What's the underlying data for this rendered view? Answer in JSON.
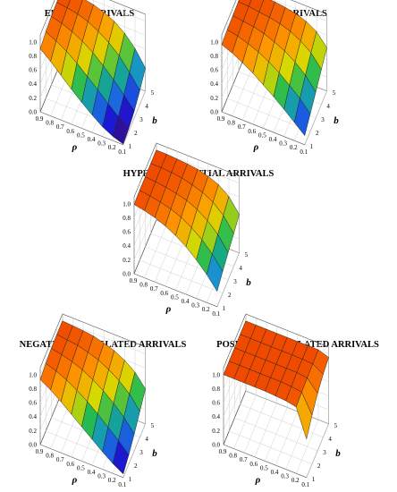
{
  "colors": {
    "scale": [
      "#3b0a78",
      "#1a1ad8",
      "#1a8ce0",
      "#12b85a",
      "#d8d800",
      "#ff9a00",
      "#f04a00"
    ]
  },
  "chart_data": [
    {
      "type": "surface",
      "title": "ERLANG ARRIVALS",
      "xlabel": "ρ",
      "ylabel": "b",
      "zlim": [
        0,
        1.1
      ],
      "rho_ticks": [
        "0.9",
        "0.8",
        "0.7",
        "0.6",
        "0.5",
        "0.4",
        "0.3",
        "0.2",
        "0.1"
      ],
      "b_ticks": [
        "1",
        "2",
        "3",
        "4",
        "5"
      ],
      "z_ticks": [
        "0.0",
        "0.2",
        "0.4",
        "0.6",
        "0.8",
        "1.0"
      ],
      "rho": [
        0.9,
        0.8,
        0.7,
        0.6,
        0.5,
        0.4,
        0.3,
        0.2,
        0.1
      ],
      "b": [
        1,
        2,
        3,
        4,
        5
      ],
      "z": [
        [
          0.9,
          0.95,
          0.98,
          0.99,
          1.0
        ],
        [
          0.78,
          0.88,
          0.94,
          0.97,
          0.99
        ],
        [
          0.64,
          0.79,
          0.88,
          0.94,
          0.97
        ],
        [
          0.5,
          0.68,
          0.8,
          0.89,
          0.94
        ],
        [
          0.37,
          0.55,
          0.7,
          0.81,
          0.89
        ],
        [
          0.25,
          0.42,
          0.57,
          0.71,
          0.82
        ],
        [
          0.14,
          0.28,
          0.43,
          0.58,
          0.71
        ],
        [
          0.06,
          0.15,
          0.27,
          0.4,
          0.55
        ],
        [
          0.01,
          0.04,
          0.1,
          0.2,
          0.33
        ]
      ]
    },
    {
      "type": "surface",
      "title": "POISSON ARRIVALS",
      "xlabel": "ρ",
      "ylabel": "b",
      "zlim": [
        0,
        1.1
      ],
      "rho_ticks": [
        "0.9",
        "0.8",
        "0.7",
        "0.6",
        "0.5",
        "0.4",
        "0.3",
        "0.2",
        "0.1"
      ],
      "b_ticks": [
        "1",
        "2",
        "3",
        "4",
        "5"
      ],
      "z_ticks": [
        "0.0",
        "0.2",
        "0.4",
        "0.6",
        "0.8",
        "1.0"
      ],
      "rho": [
        0.9,
        0.8,
        0.7,
        0.6,
        0.5,
        0.4,
        0.3,
        0.2,
        0.1
      ],
      "b": [
        1,
        2,
        3,
        4,
        5
      ],
      "z": [
        [
          0.96,
          0.98,
          0.99,
          1.0,
          1.0
        ],
        [
          0.9,
          0.95,
          0.97,
          0.99,
          1.0
        ],
        [
          0.82,
          0.9,
          0.95,
          0.97,
          0.99
        ],
        [
          0.73,
          0.84,
          0.91,
          0.95,
          0.98
        ],
        [
          0.62,
          0.76,
          0.85,
          0.92,
          0.96
        ],
        [
          0.51,
          0.66,
          0.78,
          0.87,
          0.93
        ],
        [
          0.39,
          0.54,
          0.68,
          0.79,
          0.88
        ],
        [
          0.26,
          0.41,
          0.55,
          0.68,
          0.79
        ],
        [
          0.13,
          0.25,
          0.37,
          0.5,
          0.62
        ]
      ]
    },
    {
      "type": "surface",
      "title": "HYPEREXPONENTIAL ARRIVALS",
      "xlabel": "ρ",
      "ylabel": "b",
      "zlim": [
        0,
        1.1
      ],
      "rho_ticks": [
        "0.9",
        "0.8",
        "0.7",
        "0.6",
        "0.5",
        "0.4",
        "0.3",
        "0.2",
        "0.1"
      ],
      "b_ticks": [
        "1",
        "2",
        "3",
        "4",
        "5"
      ],
      "z_ticks": [
        "0.0",
        "0.2",
        "0.4",
        "0.6",
        "0.8",
        "1.0"
      ],
      "rho": [
        0.9,
        0.8,
        0.7,
        0.6,
        0.5,
        0.4,
        0.3,
        0.2,
        0.1
      ],
      "b": [
        1,
        2,
        3,
        4,
        5
      ],
      "z": [
        [
          0.99,
          1.0,
          1.0,
          1.0,
          1.0
        ],
        [
          0.96,
          0.98,
          0.99,
          1.0,
          1.0
        ],
        [
          0.92,
          0.95,
          0.97,
          0.99,
          0.99
        ],
        [
          0.86,
          0.91,
          0.94,
          0.97,
          0.98
        ],
        [
          0.78,
          0.85,
          0.9,
          0.93,
          0.96
        ],
        [
          0.68,
          0.76,
          0.83,
          0.88,
          0.92
        ],
        [
          0.55,
          0.65,
          0.73,
          0.8,
          0.86
        ],
        [
          0.4,
          0.5,
          0.59,
          0.67,
          0.75
        ],
        [
          0.22,
          0.31,
          0.39,
          0.47,
          0.55
        ]
      ]
    },
    {
      "type": "surface",
      "title": "NEGATIVE CORRELATED ARRIVALS",
      "xlabel": "ρ",
      "ylabel": "b",
      "zlim": [
        0,
        1.1
      ],
      "rho_ticks": [
        "0.9",
        "0.8",
        "0.7",
        "0.6",
        "0.5",
        "0.4",
        "0.3",
        "0.2",
        "0.1"
      ],
      "b_ticks": [
        "1",
        "2",
        "3",
        "4",
        "5"
      ],
      "z_ticks": [
        "0.0",
        "0.2",
        "0.4",
        "0.6",
        "0.8",
        "1.0"
      ],
      "rho": [
        0.9,
        0.8,
        0.7,
        0.6,
        0.5,
        0.4,
        0.3,
        0.2,
        0.1
      ],
      "b": [
        1,
        2,
        3,
        4,
        5
      ],
      "z": [
        [
          0.93,
          0.97,
          0.99,
          1.0,
          1.0
        ],
        [
          0.84,
          0.92,
          0.96,
          0.98,
          0.99
        ],
        [
          0.73,
          0.85,
          0.92,
          0.96,
          0.98
        ],
        [
          0.61,
          0.76,
          0.86,
          0.92,
          0.96
        ],
        [
          0.49,
          0.66,
          0.78,
          0.87,
          0.92
        ],
        [
          0.37,
          0.54,
          0.68,
          0.79,
          0.87
        ],
        [
          0.25,
          0.41,
          0.56,
          0.69,
          0.79
        ],
        [
          0.14,
          0.28,
          0.42,
          0.56,
          0.68
        ],
        [
          0.05,
          0.13,
          0.24,
          0.37,
          0.5
        ]
      ]
    },
    {
      "type": "surface",
      "title": "POSITIVE CORRELATED ARRIVALS",
      "xlabel": "ρ",
      "ylabel": "b",
      "zlim": [
        0,
        1.1
      ],
      "rho_ticks": [
        "0.9",
        "0.8",
        "0.7",
        "0.6",
        "0.5",
        "0.4",
        "0.3",
        "0.2",
        "0.1"
      ],
      "b_ticks": [
        "1",
        "2",
        "3",
        "4",
        "5"
      ],
      "z_ticks": [
        "0.0",
        "0.2",
        "0.4",
        "0.6",
        "0.8",
        "1.0"
      ],
      "rho": [
        0.9,
        0.8,
        0.7,
        0.6,
        0.5,
        0.4,
        0.3,
        0.2,
        0.1
      ],
      "b": [
        1,
        2,
        3,
        4,
        5
      ],
      "z": [
        [
          1.0,
          1.0,
          1.0,
          1.0,
          1.0
        ],
        [
          1.0,
          1.0,
          1.0,
          1.0,
          1.0
        ],
        [
          1.0,
          1.0,
          1.0,
          1.0,
          1.0
        ],
        [
          1.0,
          1.0,
          1.0,
          1.0,
          1.0
        ],
        [
          1.0,
          1.0,
          1.0,
          1.0,
          1.0
        ],
        [
          0.99,
          1.0,
          1.0,
          1.0,
          1.0
        ],
        [
          0.98,
          0.99,
          1.0,
          1.0,
          1.0
        ],
        [
          0.95,
          0.97,
          0.98,
          0.99,
          1.0
        ],
        [
          0.55,
          0.7,
          0.82,
          0.9,
          0.95
        ]
      ]
    }
  ]
}
